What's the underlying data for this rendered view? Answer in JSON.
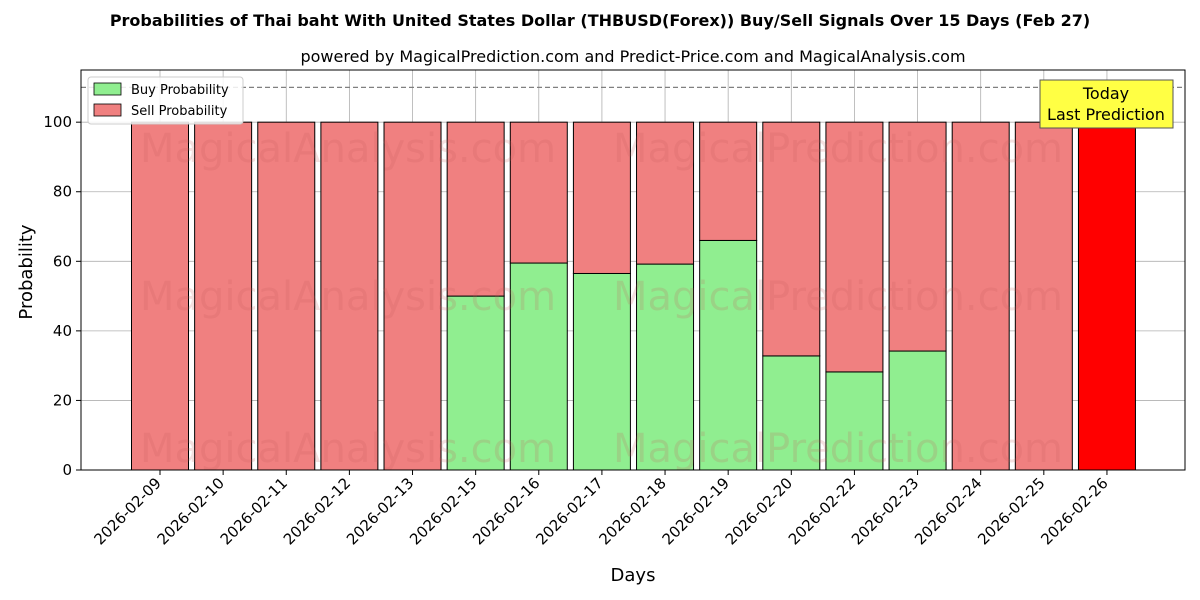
{
  "chart_data": {
    "type": "bar",
    "stacked": true,
    "title": "Probabilities of Thai baht With United States Dollar (THBUSD(Forex)) Buy/Sell Signals Over 15 Days (Feb 27)",
    "subtitle": "powered by MagicalPrediction.com and Predict-Price.com and MagicalAnalysis.com",
    "xlabel": "Days",
    "ylabel": "Probability",
    "ylim": [
      0,
      115
    ],
    "yticks": [
      0,
      20,
      40,
      60,
      80,
      100
    ],
    "reference_line": 110,
    "grid": true,
    "legend_position": "top-left",
    "categories": [
      "2026-02-09",
      "2026-02-10",
      "2026-02-11",
      "2026-02-12",
      "2026-02-13",
      "2026-02-15",
      "2026-02-16",
      "2026-02-17",
      "2026-02-18",
      "2026-02-19",
      "2026-02-20",
      "2026-02-22",
      "2026-02-23",
      "2026-02-24",
      "2026-02-25",
      "2026-02-26"
    ],
    "series": [
      {
        "name": "Buy Probability",
        "color": "#90ee90",
        "values": [
          0,
          0,
          0,
          0,
          0,
          50,
          59.5,
          56.5,
          59.2,
          66,
          32.8,
          28.2,
          34.2,
          0,
          0,
          0
        ]
      },
      {
        "name": "Sell Probability",
        "color": "#f08080",
        "values": [
          100,
          100,
          100,
          100,
          100,
          50,
          40.5,
          43.5,
          40.8,
          34,
          67.2,
          71.8,
          65.8,
          100,
          100,
          100
        ]
      }
    ],
    "highlight": {
      "index": 15,
      "color": "#ff0000",
      "annotation_lines": [
        "Today",
        "Last Prediction"
      ],
      "annotation_color": "#ffff44"
    },
    "watermarks": [
      "MagicalAnalysis.com",
      "MagicalPrediction.com"
    ]
  }
}
